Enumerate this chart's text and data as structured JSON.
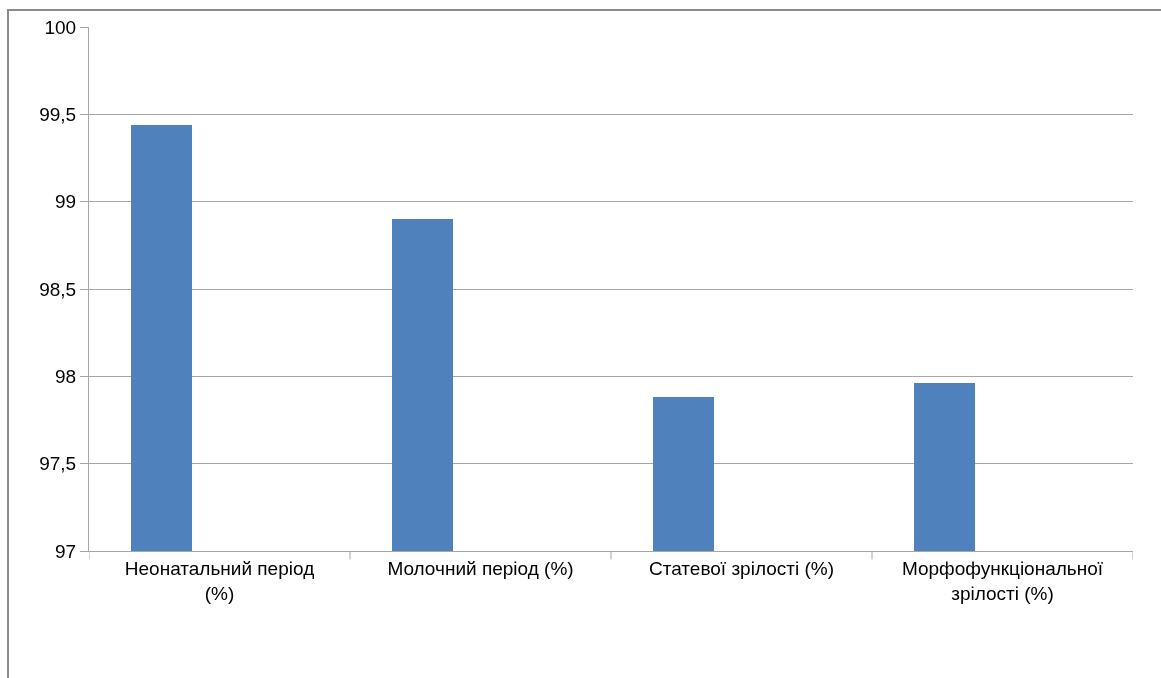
{
  "chart_data": {
    "type": "bar",
    "categories": [
      "Неонатальний період (%)",
      "Молочний період (%)",
      "Статевої зрілості (%)",
      "Морфофункціональної зрілості (%)"
    ],
    "values": [
      99.44,
      98.9,
      97.88,
      97.96
    ],
    "color": "#4f81bd",
    "ylim": [
      97,
      100
    ],
    "yticks": [
      97,
      {
        "value": 97.5,
        "label": "97,5"
      },
      98,
      {
        "value": 98.5,
        "label": "98,5"
      },
      99,
      {
        "value": 99.5,
        "label": "99,5"
      },
      100
    ],
    "grid": "y"
  }
}
